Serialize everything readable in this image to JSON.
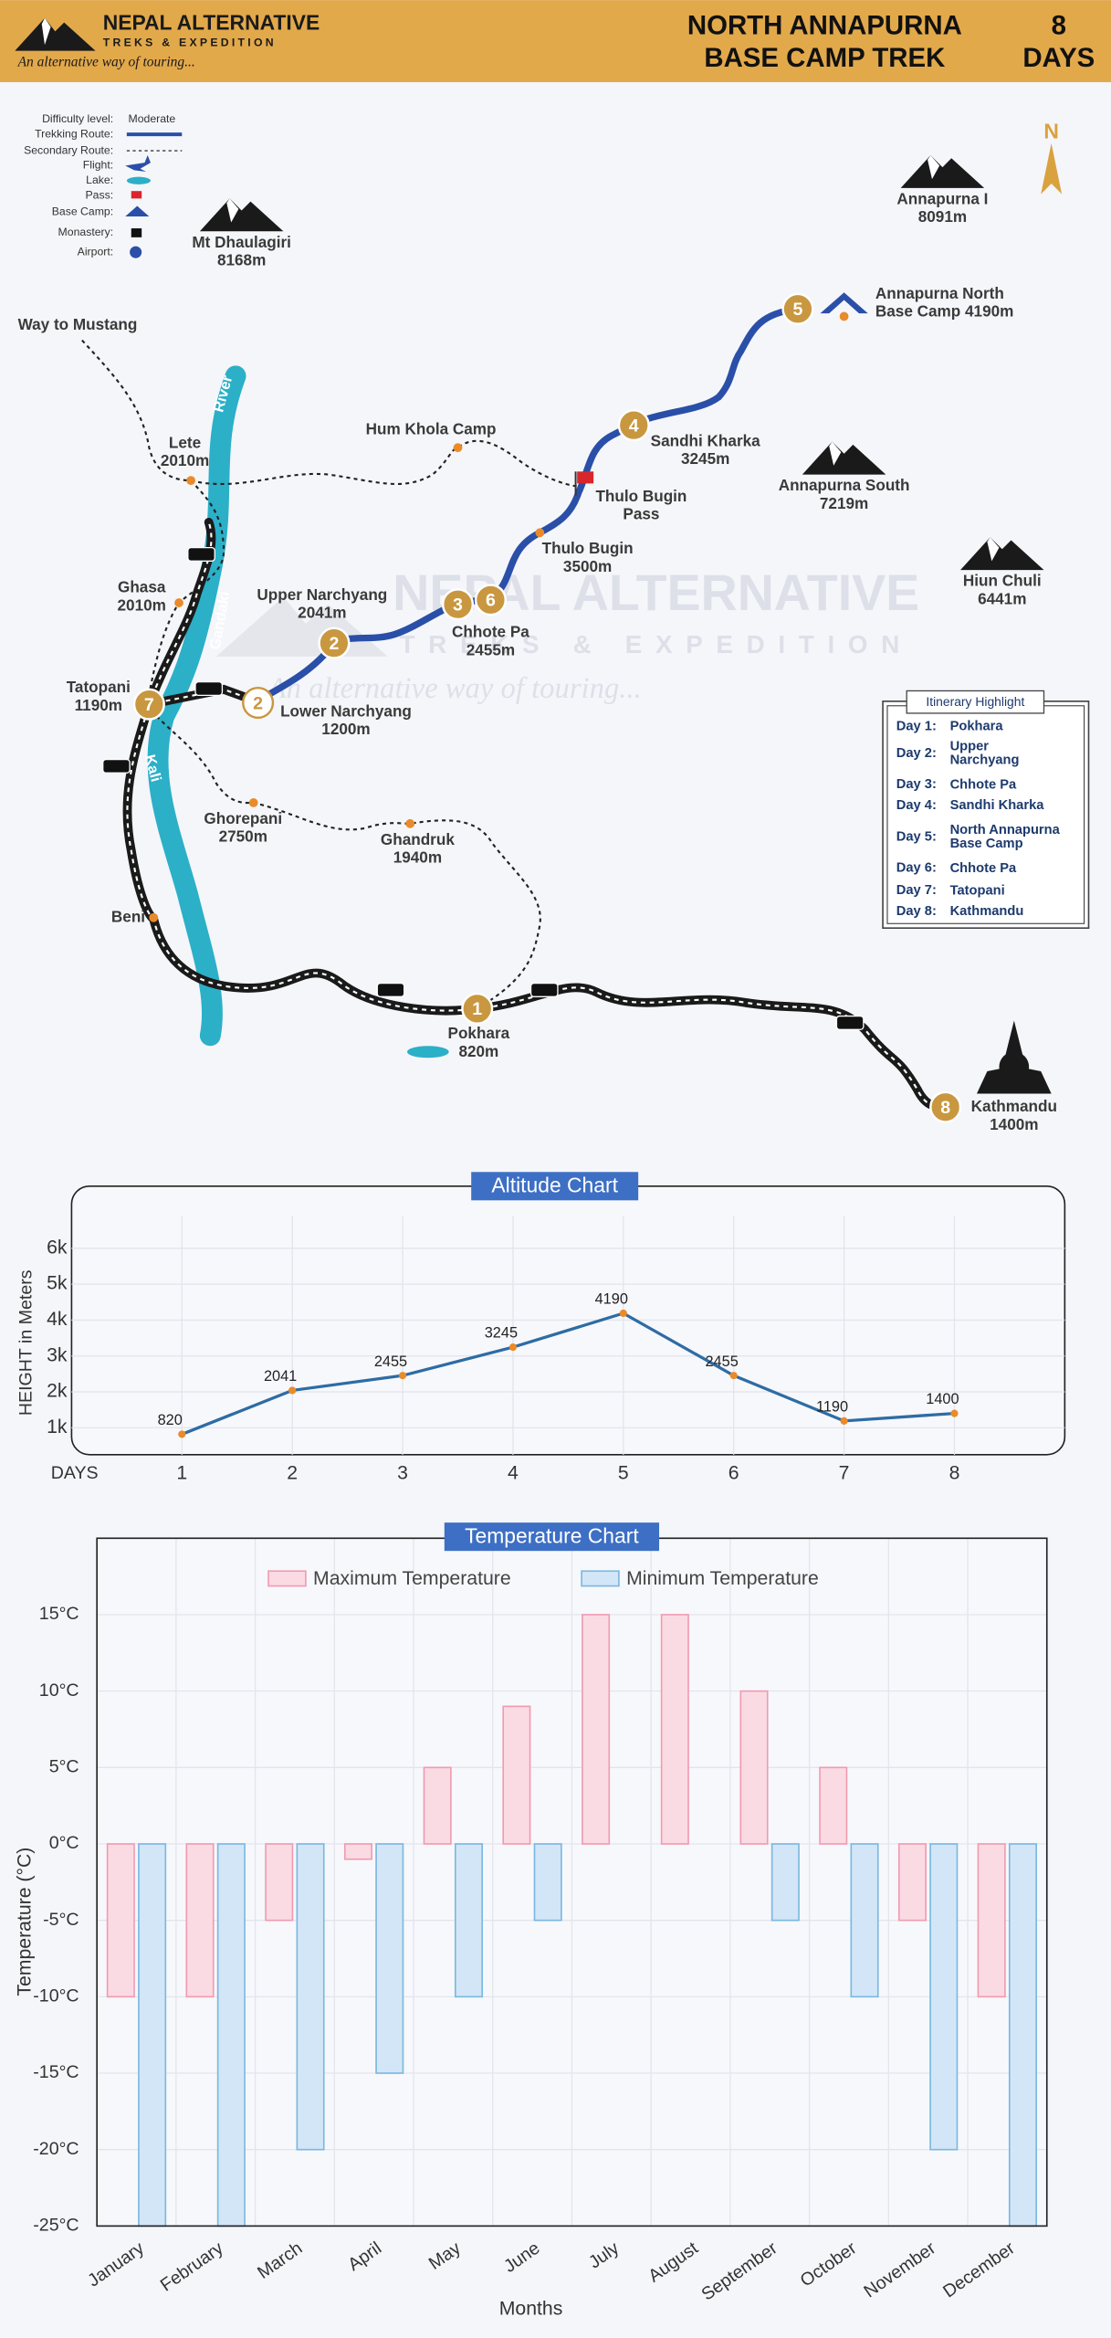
{
  "header": {
    "brand": "NEPAL ALTERNATIVE",
    "brand_sub": "TREKS & EXPEDITION",
    "tagline": "An alternative way of touring...",
    "title_lines": [
      "NORTH ANNAPURNA",
      "BASE CAMP TREK"
    ],
    "days_number": "8",
    "days_label": "DAYS"
  },
  "legend": {
    "rows": [
      {
        "label": "Difficulty level:",
        "value": "Moderate"
      },
      {
        "label": "Trekking Route:"
      },
      {
        "label": "Secondary Route:"
      },
      {
        "label": "Flight:"
      },
      {
        "label": "Lake:"
      },
      {
        "label": "Pass:"
      },
      {
        "label": "Base Camp:"
      },
      {
        "label": "Monastery:"
      },
      {
        "label": "Airport:"
      }
    ]
  },
  "map": {
    "compass": "N",
    "peaks": [
      {
        "name": "Mt Dhaulagiri",
        "height": "8168m"
      },
      {
        "name": "Annapurna I",
        "height": "8091m"
      },
      {
        "name": "Annapurna South",
        "height": "7219m"
      },
      {
        "name": "Hiun Chuli",
        "height": "6441m"
      }
    ],
    "places": [
      {
        "lines": [
          "Way to Mustang"
        ]
      },
      {
        "lines": [
          "Lete",
          "2010m"
        ]
      },
      {
        "lines": [
          "Hum Khola Camp"
        ]
      },
      {
        "lines": [
          "Ghasa",
          "2010m"
        ]
      },
      {
        "lines": [
          "Tatopani",
          "1190m"
        ]
      },
      {
        "lines": [
          "Upper Narchyang",
          "2041m"
        ]
      },
      {
        "lines": [
          "Lower Narchyang",
          "1200m"
        ]
      },
      {
        "lines": [
          "Chhote Pa",
          "2455m"
        ]
      },
      {
        "lines": [
          "Thulo Bugin",
          "3500m"
        ]
      },
      {
        "lines": [
          "Thulo Bugin",
          "Pass"
        ]
      },
      {
        "lines": [
          "Sandhi Kharka",
          "3245m"
        ]
      },
      {
        "lines": [
          "Annapurna North",
          "Base Camp 4190m"
        ]
      },
      {
        "lines": [
          "Ghorepani",
          "2750m"
        ]
      },
      {
        "lines": [
          "Ghandruk",
          "1940m"
        ]
      },
      {
        "lines": [
          "Beni"
        ]
      },
      {
        "lines": [
          "Pokhara",
          "820m"
        ]
      },
      {
        "lines": [
          "Kathmandu",
          "1400m"
        ]
      }
    ],
    "rivers": [
      "River",
      "Gandaki",
      "Kali"
    ],
    "day_markers": [
      "1",
      "2",
      "2",
      "3",
      "6",
      "4",
      "5",
      "7",
      "8"
    ]
  },
  "itinerary": {
    "title": "Itinerary Highlight",
    "days": [
      {
        "day": "Day 1:",
        "place": [
          "Pokhara"
        ]
      },
      {
        "day": "Day 2:",
        "place": [
          "Upper",
          "Narchyang"
        ]
      },
      {
        "day": "Day 3:",
        "place": [
          "Chhote Pa"
        ]
      },
      {
        "day": "Day 4:",
        "place": [
          "Sandhi Kharka"
        ]
      },
      {
        "day": "Day 5:",
        "place": [
          "North Annapurna",
          "Base Camp"
        ]
      },
      {
        "day": "Day 6:",
        "place": [
          "Chhote Pa"
        ]
      },
      {
        "day": "Day 7:",
        "place": [
          "Tatopani"
        ]
      },
      {
        "day": "Day 8:",
        "place": [
          "Kathmandu"
        ]
      }
    ]
  },
  "chart_data": [
    {
      "type": "line",
      "title": "Altitude Chart",
      "y_label": "HEIGHT in Meters",
      "x_label": "DAYS",
      "x": [
        1,
        2,
        3,
        4,
        5,
        6,
        7,
        8
      ],
      "values": [
        820,
        2041,
        2455,
        3245,
        4190,
        2455,
        1190,
        1400
      ],
      "color": "#2e6ca4",
      "point_color": "#e98b2a",
      "xlim": [
        0,
        9
      ],
      "xticks": [
        1,
        2,
        3,
        4,
        5,
        6,
        7,
        8
      ],
      "ylim": [
        250,
        6900
      ],
      "yticks": [
        {
          "value": 1000,
          "label": "1k"
        },
        {
          "value": 2000,
          "label": "2k"
        },
        {
          "value": 3000,
          "label": "3k"
        },
        {
          "value": 4000,
          "label": "4k"
        },
        {
          "value": 5000,
          "label": "5k"
        },
        {
          "value": 6000,
          "label": "6k"
        }
      ],
      "grid": true
    },
    {
      "type": "bar",
      "title": "Temperature Chart",
      "y_label": "Temperature (°C)",
      "x_label": "Months",
      "categories": [
        "January",
        "February",
        "March",
        "April",
        "May",
        "June",
        "July",
        "August",
        "September",
        "October",
        "November",
        "December"
      ],
      "series": [
        {
          "name": "Maximum Temperature",
          "color": "#fadbe3",
          "stroke": "#f09bb0",
          "values": [
            -10,
            -10,
            -5,
            -1,
            5,
            9,
            15,
            15,
            10,
            5,
            -5,
            -10
          ]
        },
        {
          "name": "Minimum Temperature",
          "color": "#d3e6f7",
          "stroke": "#7ab8e0",
          "values": [
            -25,
            -25,
            -20,
            -15,
            -10,
            -5,
            0,
            0,
            -5,
            -10,
            -20,
            -25
          ]
        }
      ],
      "ylim": [
        -25,
        20
      ],
      "yticks": [
        {
          "value": -25,
          "label": "-25°C"
        },
        {
          "value": -20,
          "label": "-20°C"
        },
        {
          "value": -15,
          "label": "-15°C"
        },
        {
          "value": -10,
          "label": "-10°C"
        },
        {
          "value": -5,
          "label": "-5°C"
        },
        {
          "value": 0,
          "label": "0°C"
        },
        {
          "value": 5,
          "label": "5°C"
        },
        {
          "value": 10,
          "label": "10°C"
        },
        {
          "value": 15,
          "label": "15°C"
        }
      ],
      "grid": true,
      "legend": "top"
    }
  ]
}
